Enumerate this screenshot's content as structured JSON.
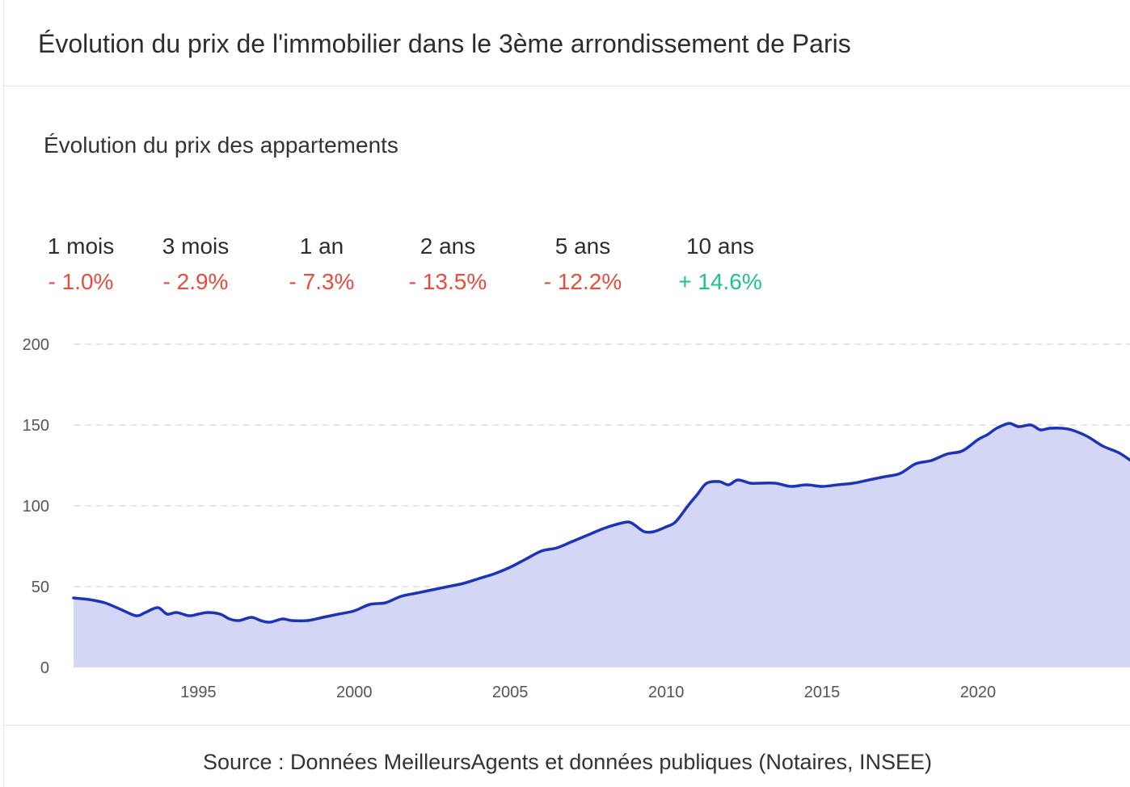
{
  "header": {
    "title": "Évolution du prix de l'immobilier dans le 3ème arrondissement de Paris"
  },
  "subtitle": "Évolution du prix des appartements",
  "periods": [
    {
      "label": "1 mois",
      "value": "- 1.0%",
      "trend": "negative"
    },
    {
      "label": "3 mois",
      "value": "- 2.9%",
      "trend": "negative"
    },
    {
      "label": "1 an",
      "value": "- 7.3%",
      "trend": "negative"
    },
    {
      "label": "2 ans",
      "value": "- 13.5%",
      "trend": "negative"
    },
    {
      "label": "5 ans",
      "value": "- 12.2%",
      "trend": "negative"
    },
    {
      "label": "10 ans",
      "value": "+ 14.6%",
      "trend": "positive"
    }
  ],
  "colors": {
    "negative": "#e84c3d",
    "positive": "#1ec38c",
    "line": "#1d34b8",
    "area": "#d3d6f4",
    "grid": "#dddddd"
  },
  "chart_data": {
    "type": "area",
    "title": "",
    "xlabel": "",
    "ylabel": "",
    "ylim": [
      0,
      200
    ],
    "yticks": [
      "0",
      "50",
      "100",
      "150",
      "200"
    ],
    "xlim": [
      1991,
      2024.9
    ],
    "xticks": [
      "1995",
      "2000",
      "2005",
      "2010",
      "2015",
      "2020"
    ],
    "grid": "horizontal-dashed",
    "legend": "none",
    "series": [
      {
        "x": [
          1991.0,
          1991.5,
          1992.0,
          1992.5,
          1993.0,
          1993.3,
          1993.7,
          1994.0,
          1994.3,
          1994.7,
          1995.0,
          1995.3,
          1995.7,
          1996.0,
          1996.3,
          1996.7,
          1997.0,
          1997.3,
          1997.7,
          1998.0,
          1998.5,
          1999.0,
          1999.5,
          2000.0,
          2000.5,
          2001.0,
          2001.5,
          2002.0,
          2002.5,
          2003.0,
          2003.5,
          2004.0,
          2004.5,
          2005.0,
          2005.5,
          2006.0,
          2006.5,
          2007.0,
          2007.5,
          2008.0,
          2008.5,
          2008.8,
          2009.0,
          2009.3,
          2009.6,
          2010.0,
          2010.3,
          2010.7,
          2011.0,
          2011.3,
          2011.7,
          2012.0,
          2012.3,
          2012.7,
          2013.0,
          2013.5,
          2014.0,
          2014.5,
          2015.0,
          2015.5,
          2016.0,
          2016.5,
          2017.0,
          2017.5,
          2018.0,
          2018.5,
          2019.0,
          2019.5,
          2020.0,
          2020.3,
          2020.6,
          2021.0,
          2021.3,
          2021.7,
          2022.0,
          2022.3,
          2022.7,
          2023.0,
          2023.5,
          2024.0,
          2024.5,
          2024.9
        ],
        "y": [
          43,
          42,
          40,
          36,
          32,
          34,
          37,
          33,
          34,
          32,
          33,
          34,
          33,
          30,
          29,
          31,
          29,
          28,
          30,
          29,
          29,
          31,
          33,
          35,
          39,
          40,
          44,
          46,
          48,
          50,
          52,
          55,
          58,
          62,
          67,
          72,
          74,
          78,
          82,
          86,
          89,
          90,
          88,
          84,
          84,
          87,
          90,
          100,
          107,
          114,
          115,
          113,
          116,
          114,
          114,
          114,
          112,
          113,
          112,
          113,
          114,
          116,
          118,
          120,
          126,
          128,
          132,
          134,
          141,
          144,
          148,
          151,
          149,
          150,
          147,
          148,
          148,
          147,
          143,
          137,
          133,
          128
        ]
      }
    ]
  },
  "footer": {
    "source": "Source : Données MeilleursAgents et données publiques (Notaires, INSEE)"
  }
}
